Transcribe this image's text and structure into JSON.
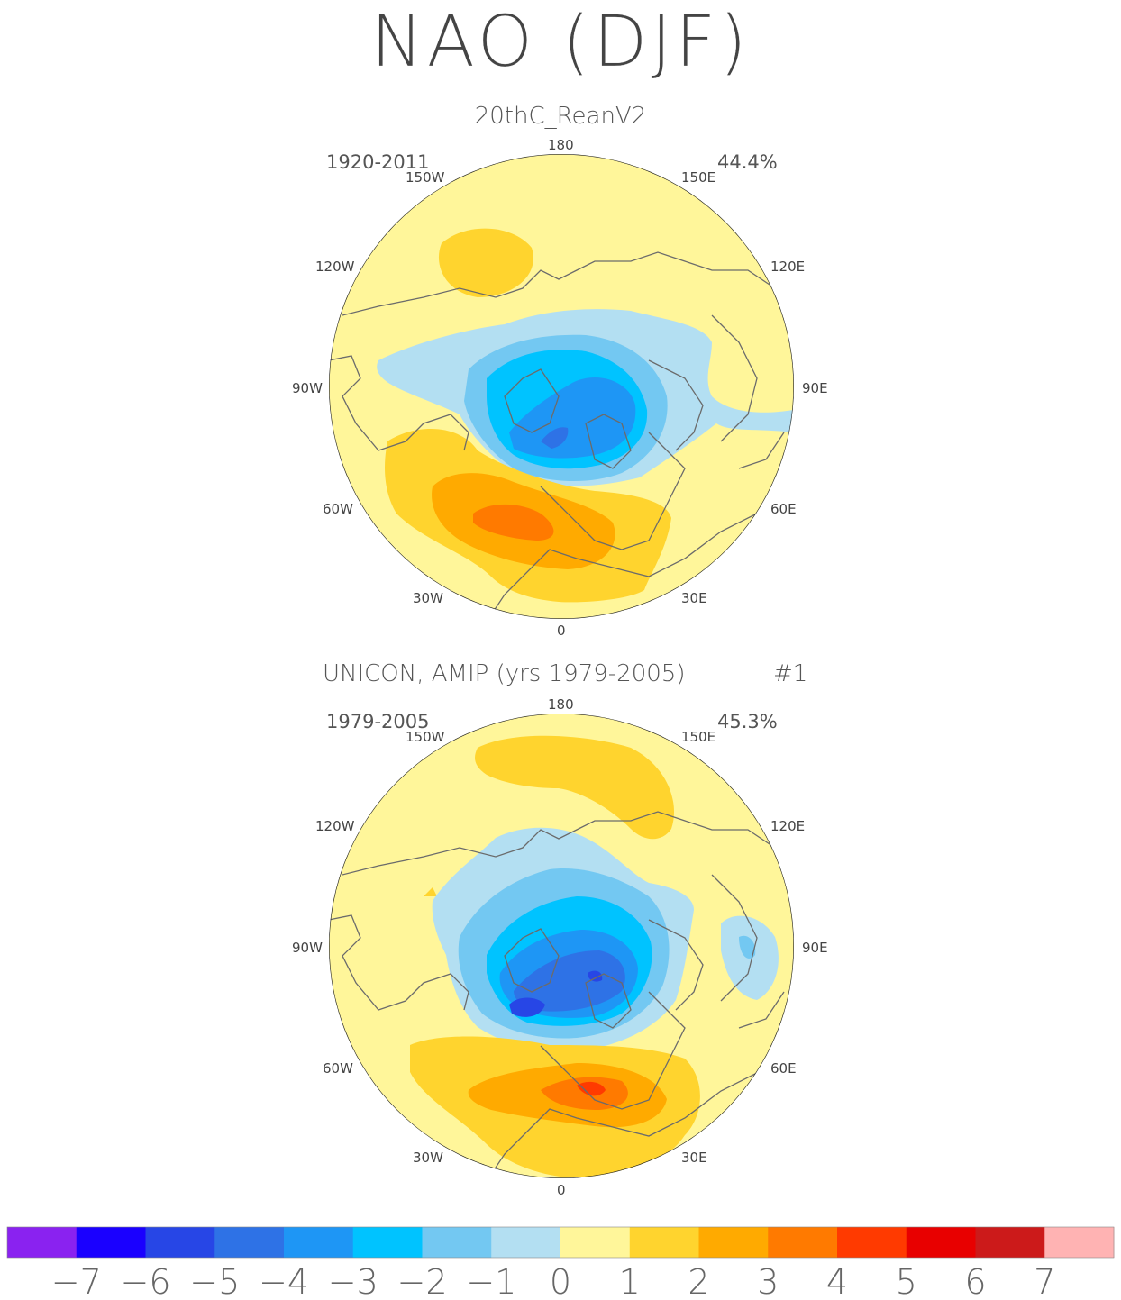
{
  "title": "NAO (DJF)",
  "panels": [
    {
      "subtitle": "20thC_ReanV2",
      "period": "1920-2011",
      "variance": "44.4%",
      "run_tag": ""
    },
    {
      "subtitle": "UNICON, AMIP (yrs 1979-2005)",
      "period": "1979-2005",
      "variance": "45.3%",
      "run_tag": "#1"
    }
  ],
  "lon_labels": {
    "top": "180",
    "bottom": "0",
    "w150": "150W",
    "e150": "150E",
    "w120": "120W",
    "e120": "120E",
    "w90": "90W",
    "e90": "90E",
    "w60": "60W",
    "e60": "60E",
    "w30": "30W",
    "e30": "30E"
  },
  "chart_data": {
    "type": "heatmap",
    "title": "NAO (DJF)",
    "projection": "north-polar-stereographic",
    "field": "NAO regression pattern",
    "colorbar": {
      "ticks": [
        "-7",
        "-6",
        "-5",
        "-4",
        "-3",
        "-2",
        "-1",
        "0",
        "1",
        "2",
        "3",
        "4",
        "5",
        "6",
        "7"
      ],
      "colors": [
        "#8a22f0",
        "#1a00ff",
        "#2746e6",
        "#2e72e6",
        "#1e96f5",
        "#00c3ff",
        "#73c8f2",
        "#b3dff2",
        "#fff69a",
        "#ffd42e",
        "#ffaa00",
        "#ff7a00",
        "#ff3a00",
        "#e80000",
        "#cc1a1a",
        "#ffb3b3"
      ]
    },
    "panels": [
      {
        "name": "20thC_ReanV2",
        "period": "1920-2011",
        "explained_variance_pct": 44.4,
        "min_value": -5,
        "max_value": 3,
        "features": [
          {
            "kind": "low",
            "location": "Iceland / Greenland",
            "peak": -5
          },
          {
            "kind": "high",
            "location": "subtropical North Atlantic / Azores",
            "peak": 3
          },
          {
            "kind": "high",
            "location": "North Pacific",
            "peak": 1
          }
        ]
      },
      {
        "name": "UNICON, AMIP (yrs 1979-2005)",
        "period": "1979-2005",
        "explained_variance_pct": 45.3,
        "min_value": -6,
        "max_value": 4,
        "features": [
          {
            "kind": "low",
            "location": "Iceland / Greenland",
            "peak": -6
          },
          {
            "kind": "high",
            "location": "subtropical North Atlantic / Mediterranean",
            "peak": 4
          },
          {
            "kind": "high",
            "location": "North Pacific",
            "peak": 1
          }
        ]
      }
    ]
  }
}
